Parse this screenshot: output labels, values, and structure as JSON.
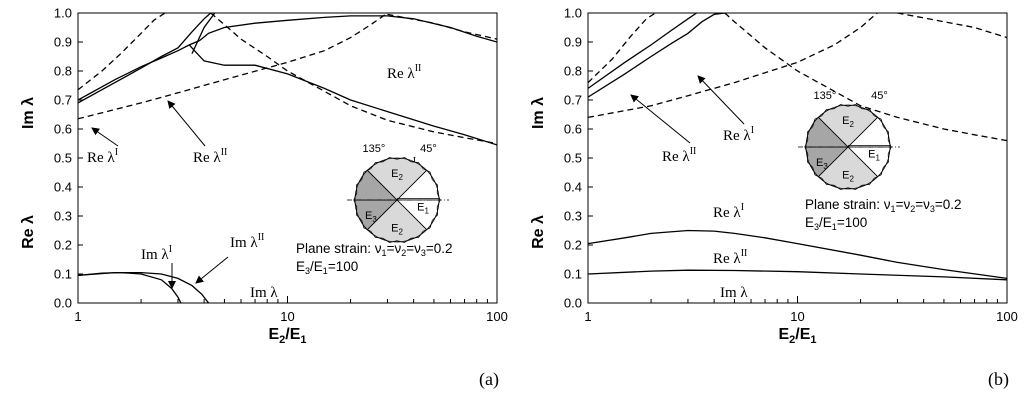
{
  "chart_data": [
    {
      "panel_label": "(a)",
      "type": "line",
      "x_scale": "log",
      "xlim": [
        1,
        100
      ],
      "ylim": [
        0,
        1
      ],
      "xlabel": "E2/E1",
      "ylabel_parts": [
        "Re λ",
        "Im λ"
      ],
      "x_ticks": [
        "1",
        "10",
        "100"
      ],
      "y_ticks": [
        "0.0",
        "0.1",
        "0.2",
        "0.3",
        "0.4",
        "0.5",
        "0.6",
        "0.7",
        "0.8",
        "0.9",
        "1.0"
      ],
      "series": [
        {
          "name": "Re λI",
          "style": "solid",
          "points": [
            [
              1,
              0.69
            ],
            [
              1.5,
              0.76
            ],
            [
              2,
              0.81
            ],
            [
              2.5,
              0.85
            ],
            [
              3,
              0.88
            ],
            [
              3.5,
              0.935
            ],
            [
              4,
              0.98
            ],
            [
              4.3,
              1.0
            ]
          ]
        },
        {
          "name": "Re λII",
          "style": "solid",
          "points": [
            [
              1,
              0.7
            ],
            [
              1.5,
              0.77
            ],
            [
              2,
              0.815
            ],
            [
              2.5,
              0.845
            ],
            [
              3,
              0.87
            ],
            [
              3.4,
              0.89
            ],
            [
              3.8,
              0.905
            ]
          ]
        },
        {
          "name": "",
          "style": "solid",
          "points": [
            [
              3.8,
              0.905
            ],
            [
              4.2,
              0.93
            ],
            [
              5,
              0.95
            ],
            [
              7,
              0.965
            ],
            [
              10,
              0.975
            ],
            [
              15,
              0.985
            ],
            [
              20,
              0.99
            ],
            [
              30,
              0.99
            ],
            [
              40,
              0.98
            ],
            [
              60,
              0.95
            ],
            [
              80,
              0.92
            ],
            [
              100,
              0.9
            ]
          ]
        },
        {
          "name": "",
          "style": "solid",
          "points": [
            [
              3.4,
              0.89
            ],
            [
              3.6,
              0.87
            ],
            [
              4,
              0.835
            ],
            [
              5,
              0.82
            ],
            [
              7,
              0.82
            ],
            [
              10,
              0.79
            ],
            [
              15,
              0.74
            ],
            [
              20,
              0.7
            ],
            [
              30,
              0.66
            ],
            [
              50,
              0.61
            ],
            [
              70,
              0.58
            ],
            [
              100,
              0.545
            ]
          ]
        },
        {
          "name": "",
          "style": "solid",
          "points": [
            [
              3.5,
              0.86
            ],
            [
              4,
              0.95
            ],
            [
              4.5,
              1.0
            ]
          ]
        },
        {
          "name": "",
          "style": "dashed",
          "points": [
            [
              1,
              0.735
            ],
            [
              1.3,
              0.8
            ],
            [
              1.6,
              0.86
            ],
            [
              2,
              0.93
            ],
            [
              2.3,
              0.975
            ],
            [
              2.6,
              1.0
            ]
          ]
        },
        {
          "name": "",
          "style": "dashed",
          "points": [
            [
              1,
              0.635
            ],
            [
              2,
              0.69
            ],
            [
              3,
              0.725
            ],
            [
              5,
              0.77
            ],
            [
              10,
              0.83
            ],
            [
              15,
              0.87
            ],
            [
              20,
              0.915
            ],
            [
              25,
              0.96
            ],
            [
              30,
              1.0
            ]
          ]
        },
        {
          "name": "",
          "style": "dashed",
          "points": [
            [
              4.3,
              1.0
            ],
            [
              5,
              0.96
            ],
            [
              6,
              0.91
            ],
            [
              8,
              0.85
            ],
            [
              10,
              0.8
            ],
            [
              15,
              0.73
            ],
            [
              20,
              0.68
            ],
            [
              30,
              0.63
            ],
            [
              50,
              0.59
            ],
            [
              70,
              0.57
            ],
            [
              100,
              0.55
            ]
          ]
        },
        {
          "name": "",
          "style": "dashed",
          "points": [
            [
              30,
              0.995
            ],
            [
              50,
              0.965
            ],
            [
              70,
              0.935
            ],
            [
              100,
              0.91
            ]
          ]
        },
        {
          "name": "Im λI",
          "style": "solid",
          "points": [
            [
              1,
              0.095
            ],
            [
              1.3,
              0.103
            ],
            [
              1.6,
              0.105
            ],
            [
              2,
              0.1
            ],
            [
              2.5,
              0.08
            ],
            [
              2.8,
              0.05
            ],
            [
              3.0,
              0.02
            ],
            [
              3.1,
              0.0
            ]
          ]
        },
        {
          "name": "Im λII",
          "style": "solid",
          "points": [
            [
              1,
              0.095
            ],
            [
              1.5,
              0.105
            ],
            [
              2,
              0.105
            ],
            [
              2.5,
              0.1
            ],
            [
              3,
              0.085
            ],
            [
              3.5,
              0.06
            ],
            [
              3.9,
              0.03
            ],
            [
              4.2,
              0.0
            ]
          ]
        }
      ],
      "annotations": [
        {
          "base": "Re λ",
          "sup": "II"
        },
        {
          "base": "Re λ",
          "sup": "I"
        },
        {
          "base": "Re λ",
          "sup": "II"
        },
        {
          "base": "Re λ",
          "sup": "I"
        },
        {
          "base": "Im λ",
          "sup": "I"
        },
        {
          "base": "Im λ",
          "sup": "II"
        },
        {
          "base": "Im λ",
          "sup": ""
        }
      ],
      "inset": {
        "angle1": "135°",
        "angle2": "45°",
        "labels": [
          "E2",
          "E3",
          "E2",
          "E1"
        ],
        "colors": {
          "E1": "#ffffff",
          "E2": "#d9d9d9",
          "E3": "#a6a6a6"
        }
      },
      "note_lines": [
        "Plane strain: ν1=ν2=ν3=0.2",
        "E3/E1=100"
      ]
    },
    {
      "panel_label": "(b)",
      "type": "line",
      "x_scale": "log",
      "xlim": [
        1,
        100
      ],
      "ylim": [
        0,
        1
      ],
      "xlabel": "E2/E1",
      "ylabel_parts": [
        "Re λ",
        "Im λ"
      ],
      "x_ticks": [
        "1",
        "10",
        "100"
      ],
      "y_ticks": [
        "0.0",
        "0.1",
        "0.2",
        "0.3",
        "0.4",
        "0.5",
        "0.6",
        "0.7",
        "0.8",
        "0.9",
        "1.0"
      ],
      "series": [
        {
          "name": "Re λI",
          "style": "solid",
          "points": [
            [
              1,
              0.74
            ],
            [
              1.5,
              0.83
            ],
            [
              2,
              0.89
            ],
            [
              2.5,
              0.94
            ],
            [
              3,
              0.98
            ],
            [
              3.3,
              1.0
            ]
          ]
        },
        {
          "name": "Re λII",
          "style": "solid",
          "points": [
            [
              1,
              0.71
            ],
            [
              1.5,
              0.79
            ],
            [
              2,
              0.85
            ],
            [
              2.5,
              0.895
            ],
            [
              3,
              0.93
            ],
            [
              3.5,
              0.97
            ],
            [
              4,
              0.995
            ],
            [
              4.5,
              1.0
            ]
          ]
        },
        {
          "name": "",
          "style": "dashed",
          "points": [
            [
              1,
              0.76
            ],
            [
              1.3,
              0.84
            ],
            [
              1.6,
              0.92
            ],
            [
              1.9,
              0.98
            ],
            [
              2.1,
              1.0
            ]
          ]
        },
        {
          "name": "",
          "style": "dashed",
          "points": [
            [
              1,
              0.64
            ],
            [
              2,
              0.68
            ],
            [
              3,
              0.715
            ],
            [
              5,
              0.76
            ],
            [
              10,
              0.83
            ],
            [
              15,
              0.89
            ],
            [
              20,
              0.95
            ],
            [
              24,
              1.0
            ]
          ]
        },
        {
          "name": "",
          "style": "dashed",
          "points": [
            [
              4.5,
              1.0
            ],
            [
              5,
              0.97
            ],
            [
              7,
              0.88
            ],
            [
              10,
              0.8
            ],
            [
              15,
              0.73
            ],
            [
              20,
              0.68
            ],
            [
              30,
              0.64
            ],
            [
              50,
              0.6
            ],
            [
              70,
              0.58
            ],
            [
              100,
              0.56
            ]
          ]
        },
        {
          "name": "",
          "style": "dashed",
          "points": [
            [
              30,
              1.0
            ],
            [
              50,
              0.97
            ],
            [
              70,
              0.95
            ],
            [
              100,
              0.915
            ]
          ]
        },
        {
          "name": "Re λI",
          "style": "solid",
          "points": [
            [
              1,
              0.205
            ],
            [
              1.5,
              0.225
            ],
            [
              2,
              0.24
            ],
            [
              3,
              0.25
            ],
            [
              4,
              0.248
            ],
            [
              5,
              0.24
            ],
            [
              7,
              0.225
            ],
            [
              10,
              0.205
            ],
            [
              20,
              0.165
            ],
            [
              30,
              0.14
            ],
            [
              50,
              0.115
            ],
            [
              100,
              0.085
            ]
          ]
        },
        {
          "name": "Re λII",
          "style": "solid",
          "points": [
            [
              1,
              0.1
            ],
            [
              2,
              0.11
            ],
            [
              3,
              0.113
            ],
            [
              5,
              0.112
            ],
            [
              10,
              0.108
            ],
            [
              20,
              0.1
            ],
            [
              50,
              0.09
            ],
            [
              100,
              0.08
            ]
          ]
        }
      ],
      "annotations": [
        {
          "base": "Re λ",
          "sup": "I"
        },
        {
          "base": "Re λ",
          "sup": "II"
        },
        {
          "base": "Re λ",
          "sup": "I"
        },
        {
          "base": "Re λ",
          "sup": "II"
        },
        {
          "base": "Im λ",
          "sup": ""
        }
      ],
      "inset": {
        "angle1": "135°",
        "angle2": "45°",
        "labels": [
          "E2",
          "E3",
          "E2",
          "E1"
        ],
        "colors": {
          "E1": "#ffffff",
          "E2": "#d9d9d9",
          "E3": "#a6a6a6"
        }
      },
      "note_lines": [
        "Plane strain: ν1=ν2=ν3=0.2",
        "E3/E1=100"
      ]
    }
  ]
}
